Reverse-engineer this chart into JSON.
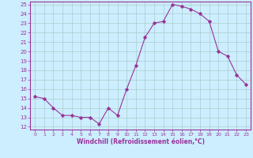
{
  "x": [
    0,
    1,
    2,
    3,
    4,
    5,
    6,
    7,
    8,
    9,
    10,
    11,
    12,
    13,
    14,
    15,
    16,
    17,
    18,
    19,
    20,
    21,
    22,
    23
  ],
  "y": [
    15.2,
    15.0,
    14.0,
    13.2,
    13.2,
    13.0,
    13.0,
    12.3,
    14.0,
    13.2,
    16.0,
    18.5,
    21.5,
    23.0,
    23.2,
    25.0,
    24.8,
    24.5,
    24.0,
    23.2,
    20.0,
    19.5,
    17.5,
    16.5
  ],
  "line_color": "#993399",
  "marker": "D",
  "marker_size": 1.8,
  "bg_color": "#cceeff",
  "grid_color": "#aacccc",
  "xlabel": "Windchill (Refroidissement éolien,°C)",
  "xlabel_color": "#993399",
  "tick_color": "#993399",
  "ylim": [
    12,
    25
  ],
  "xlim": [
    -0.5,
    23.5
  ],
  "yticks": [
    12,
    13,
    14,
    15,
    16,
    17,
    18,
    19,
    20,
    21,
    22,
    23,
    24,
    25
  ],
  "xticks": [
    0,
    1,
    2,
    3,
    4,
    5,
    6,
    7,
    8,
    9,
    10,
    11,
    12,
    13,
    14,
    15,
    16,
    17,
    18,
    19,
    20,
    21,
    22,
    23
  ]
}
